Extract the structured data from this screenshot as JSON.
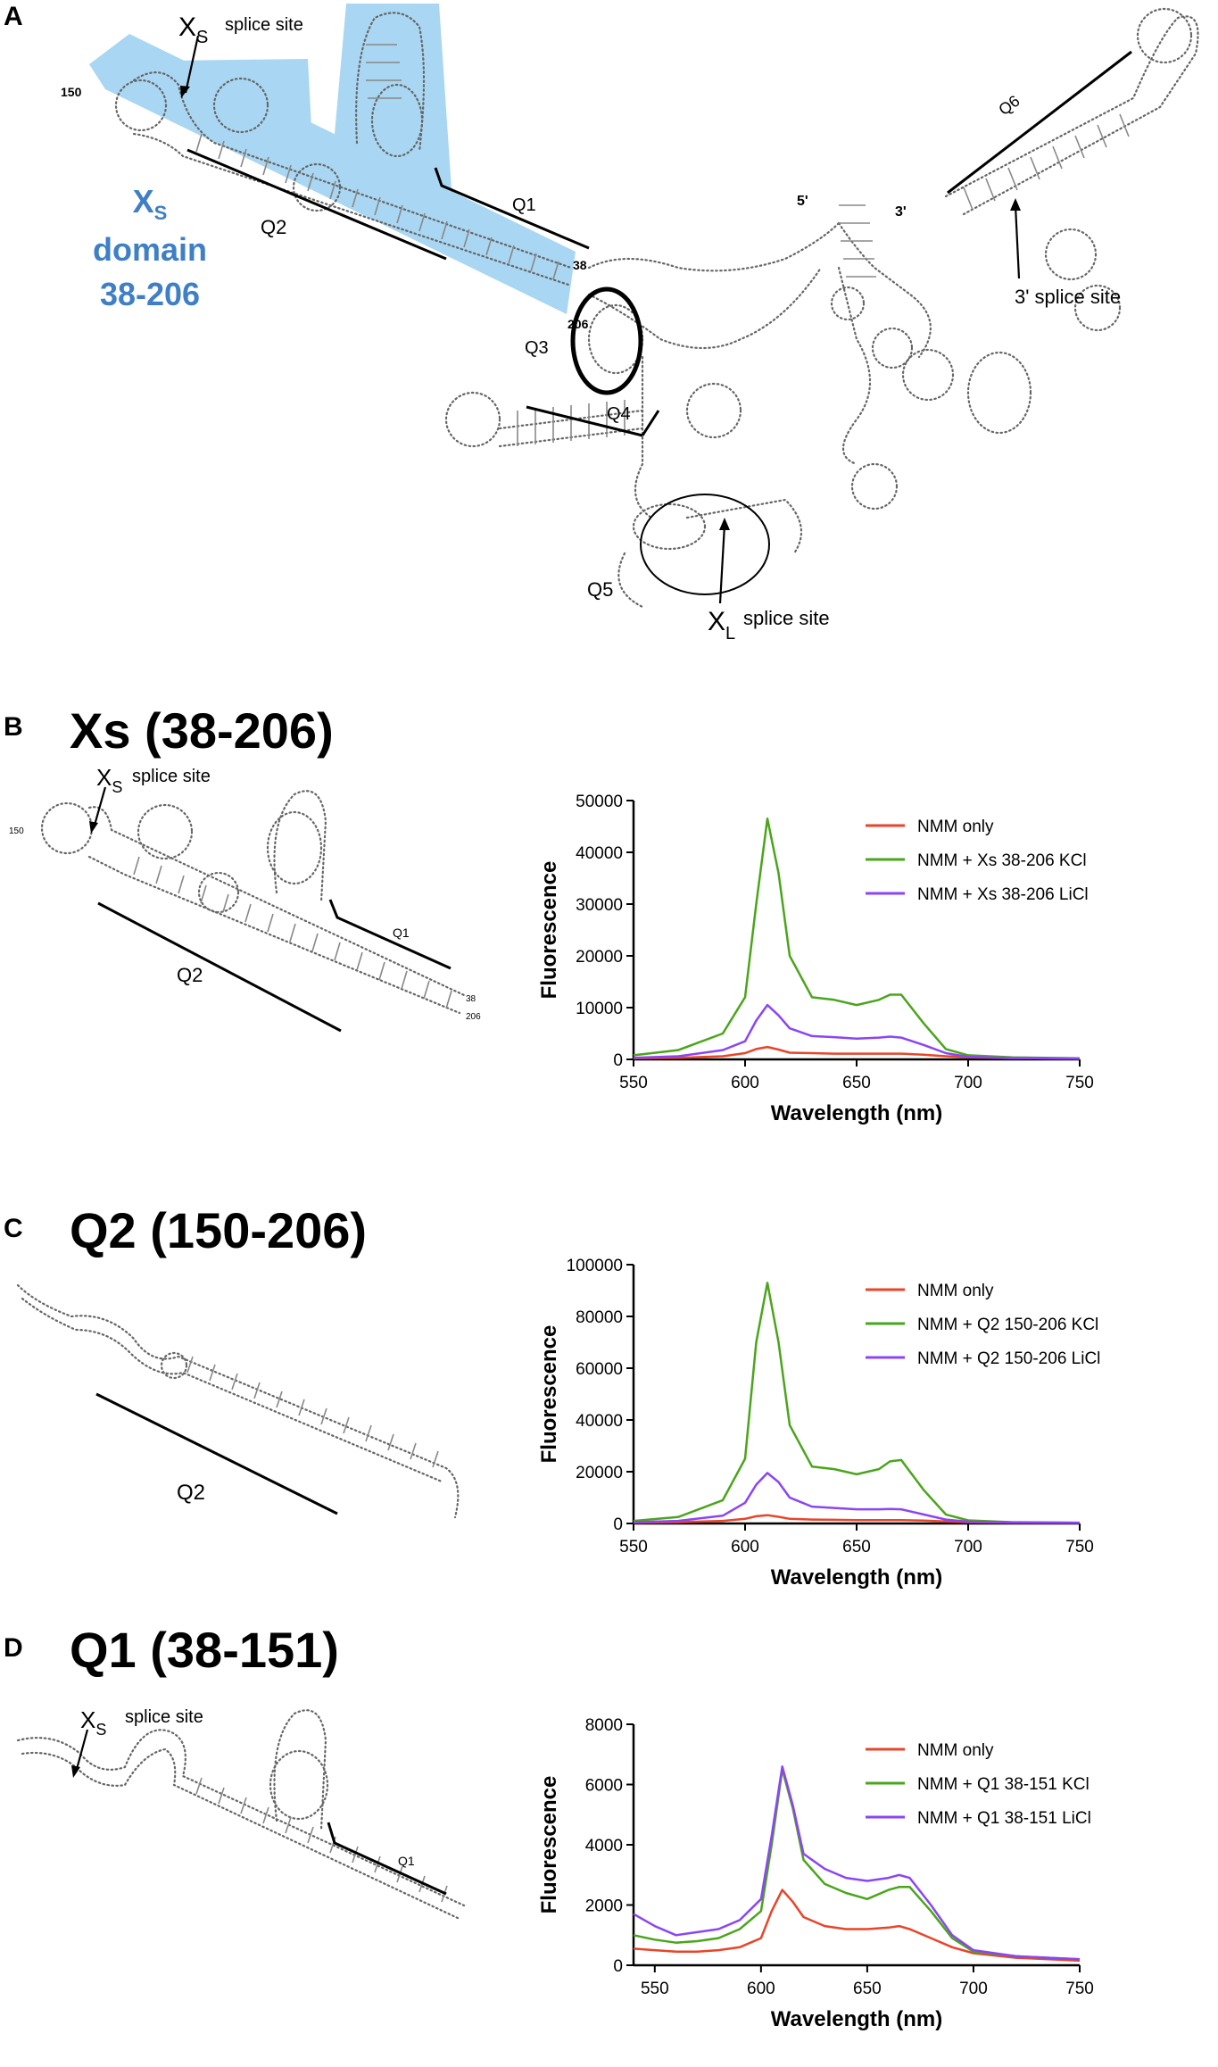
{
  "panelA": {
    "letter": "A",
    "xs_sub": "S",
    "splice_site": "splice site",
    "label_150": "150",
    "label_38": "38",
    "label_206": "206",
    "label_5p": "5'",
    "label_3p": "3'",
    "domain_x": "X",
    "domain_sub": "S",
    "domain_word": "domain",
    "domain_range": "38-206",
    "q1": "Q1",
    "q2": "Q2",
    "q3": "Q3",
    "q4": "Q4",
    "q5": "Q5",
    "q6": "Q6",
    "three_prime_splice": "3' splice site",
    "xl_sub": "L",
    "xl_splice": "splice site",
    "highlight_color": "#a9d6f2",
    "domain_color": "#3f7fc6"
  },
  "panelB": {
    "letter": "B",
    "title": "Xs (38-206)",
    "xs_sub": "S",
    "splice_site": "splice site",
    "q1": "Q1",
    "q2": "Q2",
    "label_150": "150",
    "label_38": "38",
    "label_206": "206"
  },
  "panelC": {
    "letter": "C",
    "title": "Q2 (150-206)",
    "q2": "Q2"
  },
  "panelD": {
    "letter": "D",
    "title": "Q1 (38-151)",
    "xs_sub": "S",
    "splice_site": "splice site",
    "q1": "Q1"
  },
  "colors": {
    "red": "#e8452a",
    "green": "#4aa51c",
    "purple": "#8b45f5"
  },
  "chart_data": [
    {
      "type": "line",
      "panel": "B",
      "xlabel": "Wavelength (nm)",
      "ylabel": "Fluorescence",
      "xlim": [
        550,
        750
      ],
      "ylim": [
        0,
        50000
      ],
      "xticks": [
        550,
        600,
        650,
        700,
        750
      ],
      "yticks": [
        0,
        10000,
        20000,
        30000,
        40000,
        50000
      ],
      "legend_position": "top-right",
      "x": [
        550,
        570,
        590,
        600,
        605,
        610,
        615,
        620,
        630,
        640,
        650,
        660,
        665,
        670,
        680,
        690,
        700,
        720,
        750
      ],
      "series": [
        {
          "name": "NMM only",
          "color": "#e8452a",
          "values": [
            200,
            300,
            600,
            1200,
            2000,
            2400,
            1900,
            1300,
            1200,
            1100,
            1100,
            1100,
            1100,
            1100,
            900,
            600,
            400,
            250,
            150
          ]
        },
        {
          "name": "NMM + Xs 38-206 KCl",
          "color": "#4aa51c",
          "values": [
            800,
            1800,
            5000,
            12000,
            30000,
            46500,
            36000,
            20000,
            12000,
            11500,
            10500,
            11500,
            12500,
            12500,
            7000,
            2000,
            800,
            400,
            200
          ]
        },
        {
          "name": "NMM + Xs 38-206 LiCl",
          "color": "#8b45f5",
          "values": [
            300,
            600,
            1800,
            3500,
            7500,
            10500,
            8500,
            6000,
            4500,
            4300,
            4000,
            4200,
            4400,
            4200,
            2800,
            1200,
            500,
            250,
            150
          ]
        }
      ]
    },
    {
      "type": "line",
      "panel": "C",
      "xlabel": "Wavelength (nm)",
      "ylabel": "Fluorescence",
      "xlim": [
        550,
        750
      ],
      "ylim": [
        0,
        100000
      ],
      "xticks": [
        550,
        600,
        650,
        700,
        750
      ],
      "yticks": [
        0,
        20000,
        40000,
        60000,
        80000,
        100000
      ],
      "legend_position": "top-right",
      "x": [
        550,
        570,
        590,
        600,
        605,
        610,
        615,
        620,
        630,
        640,
        650,
        660,
        665,
        670,
        680,
        690,
        700,
        720,
        750
      ],
      "series": [
        {
          "name": "NMM only",
          "color": "#e8452a",
          "values": [
            300,
            500,
            1000,
            1800,
            2800,
            3200,
            2600,
            1800,
            1500,
            1400,
            1300,
            1300,
            1300,
            1300,
            1100,
            800,
            500,
            300,
            200
          ]
        },
        {
          "name": "NMM + Q2 150-206 KCl",
          "color": "#4aa51c",
          "values": [
            1000,
            2500,
            9000,
            25000,
            70000,
            93000,
            70000,
            38000,
            22000,
            21000,
            19000,
            21000,
            24000,
            24500,
            13000,
            3500,
            1200,
            500,
            300
          ]
        },
        {
          "name": "NMM + Q2 150-206 LiCl",
          "color": "#8b45f5",
          "values": [
            500,
            1000,
            3000,
            8000,
            15000,
            19500,
            16000,
            10000,
            6500,
            6000,
            5500,
            5500,
            5600,
            5500,
            3500,
            1500,
            700,
            400,
            250
          ]
        }
      ]
    },
    {
      "type": "line",
      "panel": "D",
      "xlabel": "Wavelength (nm)",
      "ylabel": "Fluorescence",
      "xlim": [
        540,
        750
      ],
      "ylim": [
        0,
        8000
      ],
      "xticks": [
        550,
        600,
        650,
        700,
        750
      ],
      "yticks": [
        0,
        2000,
        4000,
        6000,
        8000
      ],
      "legend_position": "top-right",
      "x": [
        540,
        550,
        560,
        570,
        580,
        590,
        600,
        605,
        610,
        615,
        620,
        630,
        640,
        650,
        660,
        665,
        670,
        680,
        690,
        700,
        720,
        750
      ],
      "series": [
        {
          "name": "NMM only",
          "color": "#e8452a",
          "values": [
            550,
            500,
            450,
            450,
            500,
            600,
            900,
            1800,
            2500,
            2100,
            1600,
            1300,
            1200,
            1200,
            1250,
            1300,
            1200,
            900,
            600,
            400,
            250,
            150
          ]
        },
        {
          "name": "NMM + Q1 38-151 KCl",
          "color": "#4aa51c",
          "values": [
            1000,
            850,
            750,
            800,
            900,
            1200,
            1800,
            4000,
            6500,
            5200,
            3500,
            2700,
            2400,
            2200,
            2500,
            2600,
            2600,
            1800,
            900,
            450,
            300,
            200
          ]
        },
        {
          "name": "NMM + Q1 38-151 LiCl",
          "color": "#8b45f5",
          "values": [
            1700,
            1300,
            1000,
            1100,
            1200,
            1500,
            2200,
            4300,
            6600,
            5300,
            3700,
            3200,
            2900,
            2800,
            2900,
            3000,
            2900,
            2000,
            1000,
            500,
            300,
            200
          ]
        }
      ]
    }
  ]
}
